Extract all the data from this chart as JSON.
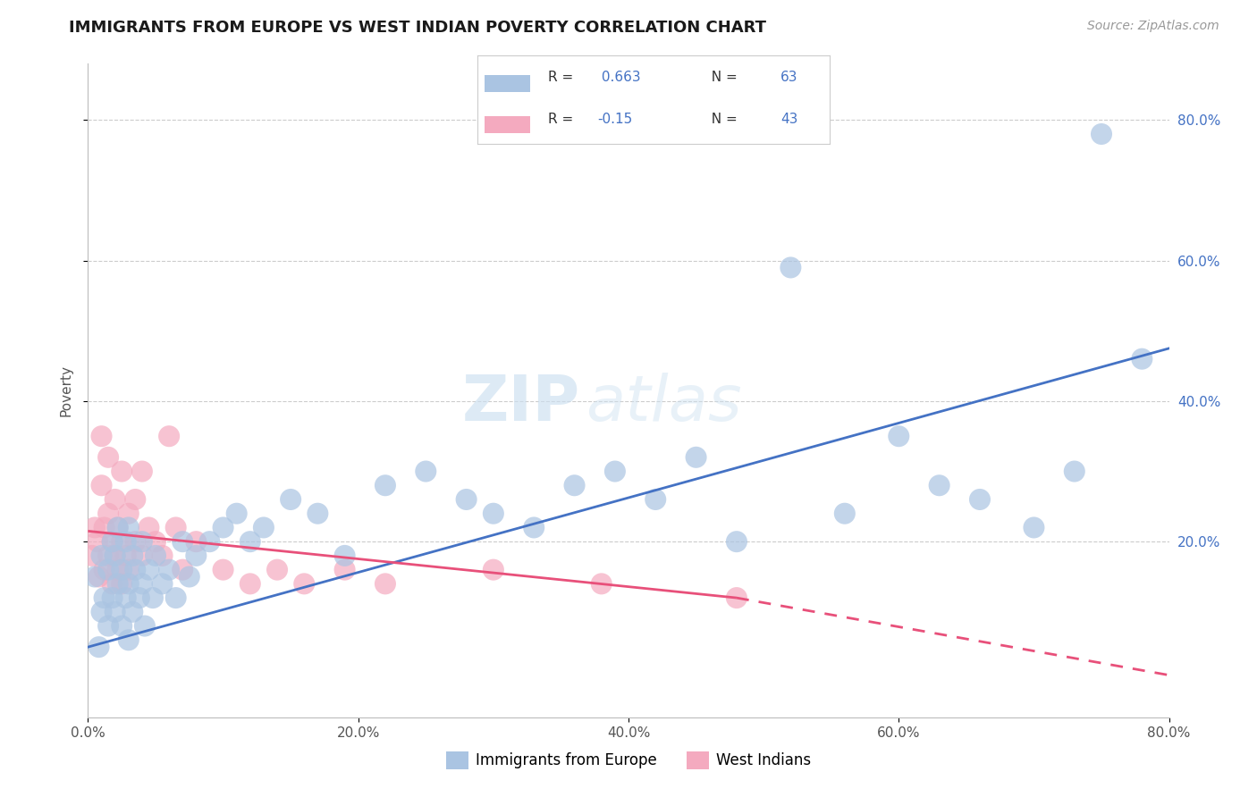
{
  "title": "IMMIGRANTS FROM EUROPE VS WEST INDIAN POVERTY CORRELATION CHART",
  "source": "Source: ZipAtlas.com",
  "ylabel": "Poverty",
  "xlim": [
    0.0,
    0.8
  ],
  "ylim": [
    -0.05,
    0.88
  ],
  "xtick_vals": [
    0.0,
    0.2,
    0.4,
    0.6,
    0.8
  ],
  "ytick_vals": [
    0.2,
    0.4,
    0.6,
    0.8
  ],
  "blue_R": 0.663,
  "blue_N": 63,
  "pink_R": -0.15,
  "pink_N": 43,
  "blue_color": "#aac4e2",
  "pink_color": "#f4aabf",
  "blue_line_color": "#4472c4",
  "pink_line_color": "#e8507a",
  "watermark_zip": "ZIP",
  "watermark_atlas": "atlas",
  "legend_label_blue": "Immigrants from Europe",
  "legend_label_pink": "West Indians",
  "blue_scatter_x": [
    0.005,
    0.008,
    0.01,
    0.01,
    0.012,
    0.015,
    0.015,
    0.018,
    0.018,
    0.02,
    0.02,
    0.022,
    0.022,
    0.025,
    0.025,
    0.028,
    0.028,
    0.03,
    0.03,
    0.03,
    0.033,
    0.033,
    0.035,
    0.038,
    0.04,
    0.04,
    0.042,
    0.045,
    0.048,
    0.05,
    0.055,
    0.06,
    0.065,
    0.07,
    0.075,
    0.08,
    0.09,
    0.1,
    0.11,
    0.12,
    0.13,
    0.15,
    0.17,
    0.19,
    0.22,
    0.25,
    0.28,
    0.3,
    0.33,
    0.36,
    0.39,
    0.42,
    0.45,
    0.48,
    0.52,
    0.56,
    0.6,
    0.63,
    0.66,
    0.7,
    0.73,
    0.75,
    0.78
  ],
  "blue_scatter_y": [
    0.15,
    0.05,
    0.1,
    0.18,
    0.12,
    0.08,
    0.16,
    0.12,
    0.2,
    0.1,
    0.18,
    0.14,
    0.22,
    0.16,
    0.08,
    0.12,
    0.2,
    0.06,
    0.14,
    0.22,
    0.1,
    0.18,
    0.16,
    0.12,
    0.14,
    0.2,
    0.08,
    0.16,
    0.12,
    0.18,
    0.14,
    0.16,
    0.12,
    0.2,
    0.15,
    0.18,
    0.2,
    0.22,
    0.24,
    0.2,
    0.22,
    0.26,
    0.24,
    0.18,
    0.28,
    0.3,
    0.26,
    0.24,
    0.22,
    0.28,
    0.3,
    0.26,
    0.32,
    0.2,
    0.59,
    0.24,
    0.35,
    0.28,
    0.26,
    0.22,
    0.3,
    0.78,
    0.46
  ],
  "pink_scatter_x": [
    0.003,
    0.005,
    0.007,
    0.008,
    0.01,
    0.01,
    0.012,
    0.012,
    0.015,
    0.015,
    0.015,
    0.018,
    0.018,
    0.02,
    0.02,
    0.022,
    0.022,
    0.025,
    0.025,
    0.025,
    0.028,
    0.03,
    0.03,
    0.035,
    0.035,
    0.04,
    0.04,
    0.045,
    0.05,
    0.055,
    0.06,
    0.065,
    0.07,
    0.08,
    0.1,
    0.12,
    0.14,
    0.16,
    0.19,
    0.22,
    0.3,
    0.38,
    0.48
  ],
  "pink_scatter_y": [
    0.18,
    0.22,
    0.2,
    0.15,
    0.35,
    0.28,
    0.16,
    0.22,
    0.18,
    0.24,
    0.32,
    0.2,
    0.14,
    0.26,
    0.18,
    0.22,
    0.16,
    0.3,
    0.2,
    0.14,
    0.18,
    0.24,
    0.16,
    0.2,
    0.26,
    0.18,
    0.3,
    0.22,
    0.2,
    0.18,
    0.35,
    0.22,
    0.16,
    0.2,
    0.16,
    0.14,
    0.16,
    0.14,
    0.16,
    0.14,
    0.16,
    0.14,
    0.12
  ],
  "grid_color": "#cccccc",
  "background_color": "#ffffff",
  "title_color": "#1a1a1a",
  "ytick_color": "#4472c4",
  "xtick_color": "#555555",
  "title_fontsize": 13,
  "axis_label_fontsize": 11,
  "tick_fontsize": 11,
  "legend_fontsize": 11,
  "source_fontsize": 10,
  "blue_line_intercept": 0.05,
  "blue_line_end": 0.475,
  "pink_line_start": 0.215,
  "pink_line_solid_end_x": 0.48,
  "pink_line_end_y": 0.12,
  "pink_line_dash_end_x": 0.8,
  "pink_line_dash_end_y": 0.01
}
